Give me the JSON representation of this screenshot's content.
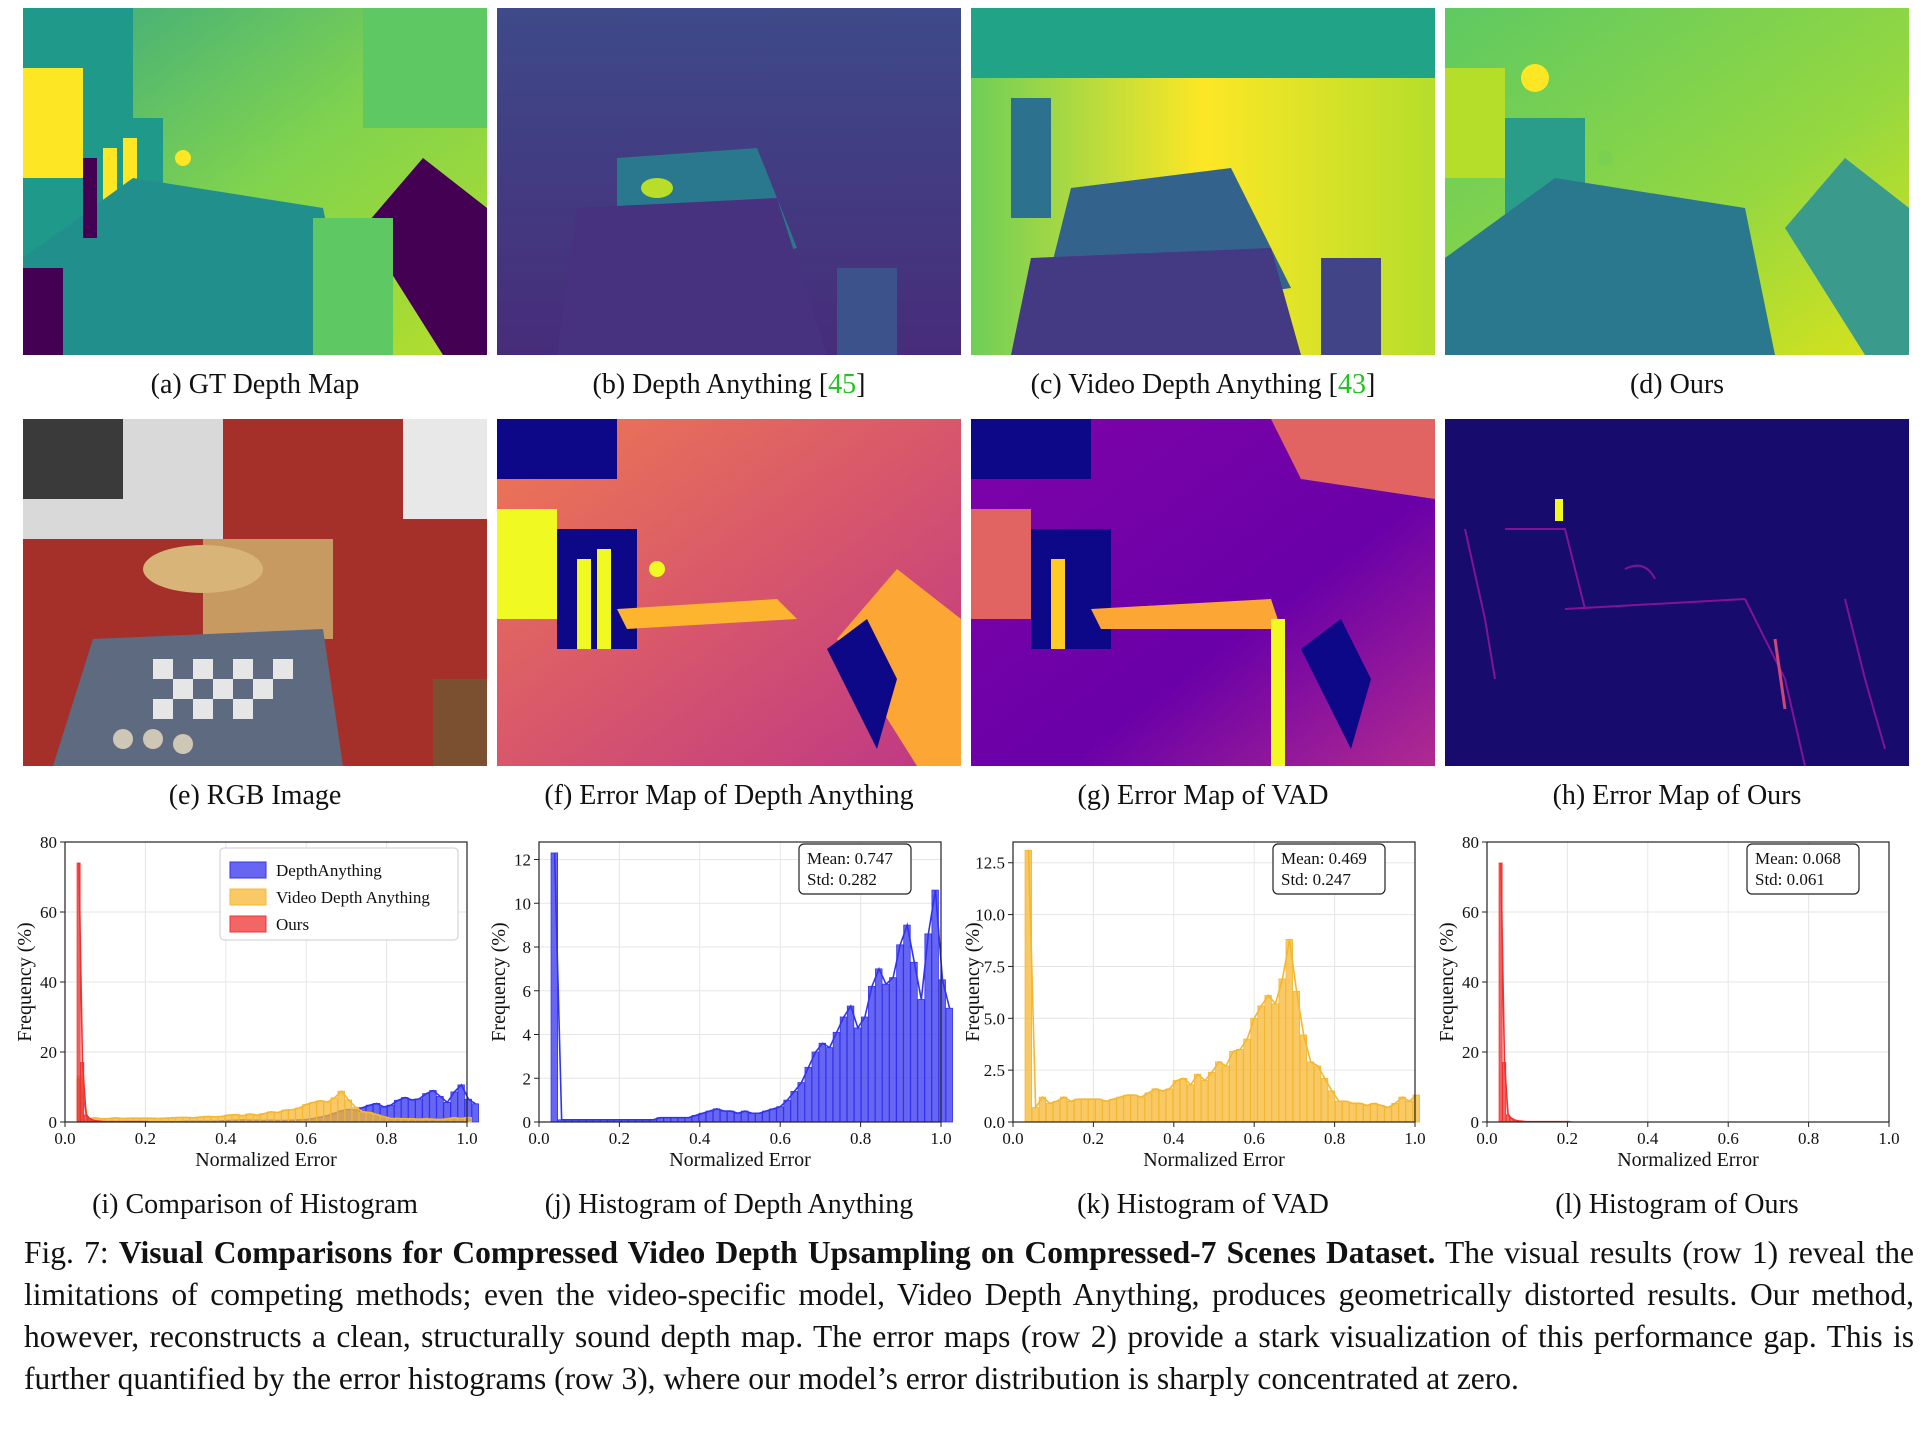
{
  "panels_row1": [
    {
      "caption_prefix": "(a) GT Depth Map",
      "ref": "",
      "caption_suffix": ""
    },
    {
      "caption_prefix": "(b) Depth Anything [",
      "ref": "45",
      "caption_suffix": "]"
    },
    {
      "caption_prefix": "(c) Video Depth Anything [",
      "ref": "43",
      "caption_suffix": "]"
    },
    {
      "caption_prefix": "(d) Ours",
      "ref": "",
      "caption_suffix": ""
    }
  ],
  "panels_row2": [
    {
      "caption": "(e) RGB Image"
    },
    {
      "caption": "(f) Error Map of Depth Anything"
    },
    {
      "caption": "(g) Error Map of VAD"
    },
    {
      "caption": "(h) Error Map of Ours"
    }
  ],
  "panels_row3": [
    {
      "caption": "(i) Comparison of Histogram"
    },
    {
      "caption": "(j) Histogram of Depth Anything"
    },
    {
      "caption": "(k) Histogram of VAD"
    },
    {
      "caption": "(l) Histogram of Ours"
    }
  ],
  "colors": {
    "blue": "#3333ee",
    "orange": "#f5b731",
    "red": "#ee3333",
    "ref_green": "#22c322"
  },
  "chart_data": [
    {
      "type": "bar",
      "id": "i",
      "xlabel": "Normalized Error",
      "ylabel": "Frequency (%)",
      "xlim": [
        0,
        1.0
      ],
      "ylim": [
        0,
        80
      ],
      "xticks": [
        "0.0",
        "0.2",
        "0.4",
        "0.6",
        "0.8",
        "1.0"
      ],
      "yticks": [
        "0",
        "20",
        "40",
        "60",
        "80"
      ],
      "legend_position": "top-right",
      "series": [
        {
          "name": "DepthAnything",
          "color": "#3333ee",
          "values": [
            12.3,
            0.1,
            0.1,
            0.1,
            0.1,
            0.1,
            0.1,
            0.1,
            0.1,
            0.1,
            0.1,
            0.1,
            0.1,
            0.1,
            0.1,
            0.2,
            0.2,
            0.2,
            0.2,
            0.2,
            0.3,
            0.4,
            0.5,
            0.6,
            0.5,
            0.5,
            0.4,
            0.5,
            0.4,
            0.4,
            0.5,
            0.6,
            0.7,
            1.0,
            1.4,
            1.8,
            2.5,
            3.2,
            3.6,
            3.4,
            4.1,
            4.8,
            5.3,
            4.3,
            4.8,
            6.2,
            7.0,
            6.3,
            6.6,
            8.1,
            9.0,
            7.3,
            5.6,
            8.6,
            10.6,
            6.5,
            5.2
          ]
        },
        {
          "name": "Video Depth Anything",
          "color": "#f5b731",
          "values": [
            13.1,
            0.7,
            1.2,
            0.9,
            1.0,
            1.2,
            1.0,
            1.1,
            1.1,
            1.1,
            1.1,
            1.0,
            1.1,
            1.2,
            1.3,
            1.3,
            1.2,
            1.4,
            1.6,
            1.5,
            1.6,
            2.0,
            2.1,
            1.8,
            2.3,
            2.0,
            2.4,
            2.9,
            2.7,
            3.4,
            3.5,
            4.0,
            5.0,
            5.6,
            6.1,
            5.7,
            6.9,
            8.8,
            6.3,
            4.2,
            2.9,
            2.7,
            2.1,
            1.5,
            1.0,
            1.0,
            0.9,
            0.9,
            0.8,
            0.9,
            0.8,
            0.7,
            0.9,
            1.2,
            1.0,
            1.3
          ]
        },
        {
          "name": "Ours",
          "color": "#ee3333",
          "values": [
            74.0,
            17.0,
            2.0,
            1.0,
            0.5,
            0.3,
            0.2,
            0.1,
            0.1,
            0.1,
            0.1,
            0.1,
            0.1,
            0.1,
            0.1,
            0.1,
            0.1,
            0.1,
            0.1,
            0.1
          ]
        }
      ]
    },
    {
      "type": "bar",
      "id": "j",
      "xlabel": "Normalized Error",
      "ylabel": "Frequency (%)",
      "xlim": [
        0,
        1.0
      ],
      "ylim": [
        0,
        12.8
      ],
      "xticks": [
        "0.0",
        "0.2",
        "0.4",
        "0.6",
        "0.8",
        "1.0"
      ],
      "yticks": [
        "0",
        "2",
        "4",
        "6",
        "8",
        "10",
        "12"
      ],
      "annotation": [
        "Mean: 0.747",
        "Std: 0.282"
      ],
      "series": [
        {
          "name": "DepthAnything",
          "color": "#3333ee",
          "values": [
            12.3,
            0.1,
            0.1,
            0.1,
            0.1,
            0.1,
            0.1,
            0.1,
            0.1,
            0.1,
            0.1,
            0.1,
            0.1,
            0.1,
            0.1,
            0.2,
            0.2,
            0.2,
            0.2,
            0.2,
            0.3,
            0.4,
            0.5,
            0.6,
            0.5,
            0.5,
            0.4,
            0.5,
            0.4,
            0.4,
            0.5,
            0.6,
            0.7,
            1.0,
            1.4,
            1.8,
            2.5,
            3.2,
            3.6,
            3.4,
            4.1,
            4.8,
            5.3,
            4.3,
            4.8,
            6.2,
            7.0,
            6.3,
            6.6,
            8.1,
            9.0,
            7.3,
            5.6,
            8.6,
            10.6,
            6.5,
            5.2
          ]
        }
      ]
    },
    {
      "type": "bar",
      "id": "k",
      "xlabel": "Normalized Error",
      "ylabel": "Frequency (%)",
      "xlim": [
        0,
        1.0
      ],
      "ylim": [
        0,
        13.5
      ],
      "xticks": [
        "0.0",
        "0.2",
        "0.4",
        "0.6",
        "0.8",
        "1.0"
      ],
      "yticks": [
        "0.0",
        "2.5",
        "5.0",
        "7.5",
        "10.0",
        "12.5"
      ],
      "annotation": [
        "Mean: 0.469",
        "Std: 0.247"
      ],
      "series": [
        {
          "name": "Video Depth Anything",
          "color": "#f5b731",
          "values": [
            13.1,
            0.7,
            1.2,
            0.9,
            1.0,
            1.2,
            1.0,
            1.1,
            1.1,
            1.1,
            1.1,
            1.0,
            1.1,
            1.2,
            1.3,
            1.3,
            1.2,
            1.4,
            1.6,
            1.5,
            1.6,
            2.0,
            2.1,
            1.8,
            2.3,
            2.0,
            2.4,
            2.9,
            2.7,
            3.4,
            3.5,
            4.0,
            5.0,
            5.6,
            6.1,
            5.7,
            6.9,
            8.8,
            6.3,
            4.2,
            2.9,
            2.7,
            2.1,
            1.5,
            1.0,
            1.0,
            0.9,
            0.9,
            0.8,
            0.9,
            0.8,
            0.7,
            0.9,
            1.2,
            1.0,
            1.3
          ]
        }
      ]
    },
    {
      "type": "bar",
      "id": "l",
      "xlabel": "Normalized Error",
      "ylabel": "Frequency (%)",
      "xlim": [
        0,
        1.0
      ],
      "ylim": [
        0,
        80
      ],
      "xticks": [
        "0.0",
        "0.2",
        "0.4",
        "0.6",
        "0.8",
        "1.0"
      ],
      "yticks": [
        "0",
        "20",
        "40",
        "60",
        "80"
      ],
      "annotation": [
        "Mean: 0.068",
        "Std: 0.061"
      ],
      "series": [
        {
          "name": "Ours",
          "color": "#ee3333",
          "values": [
            74.0,
            17.0,
            2.0,
            1.0,
            0.5,
            0.3,
            0.2,
            0.1,
            0.1,
            0.1,
            0.1,
            0.1,
            0.1,
            0.1,
            0.1,
            0.1,
            0.1,
            0.1,
            0.1,
            0.1
          ]
        }
      ]
    }
  ],
  "figure_caption": {
    "label": "Fig. 7: ",
    "title": "Visual Comparisons for Compressed Video Depth Upsampling on Compressed-7 Scenes Dataset.",
    "body": " The visual results (row 1) reveal the limitations of competing methods; even the video-specific model, Video Depth Anything, produces geometrically distorted results. Our method, however, reconstructs a clean, structurally sound depth map. The error maps (row 2) provide a stark visualization of this performance gap. This is further quantified by the error histograms (row 3), where our model’s error distribution is sharply concentrated at zero."
  }
}
